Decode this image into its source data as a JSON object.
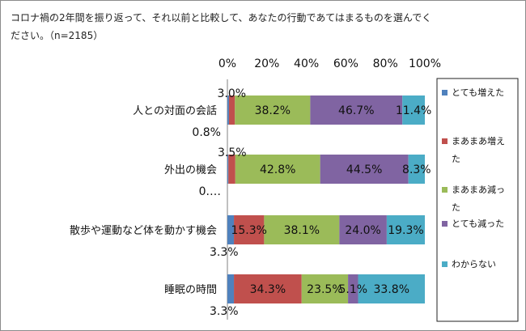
{
  "question": "コロナ禍の2年間を振り返って、それ以前と比較して、あなたの行動であてはまるものを選んでください。（n=2185）",
  "colors": {
    "series": [
      "#4f81bd",
      "#c0504d",
      "#9bbb59",
      "#8064a2",
      "#4bacc6"
    ]
  },
  "chart_data": {
    "type": "bar",
    "orientation": "horizontal",
    "stacked": true,
    "percent": true,
    "xlim": [
      0,
      100
    ],
    "ticks": [
      "0%",
      "20%",
      "40%",
      "60%",
      "80%",
      "100%"
    ],
    "categories": [
      "人との対面の会話",
      "外出の機会",
      "散歩や運動など体を動かす機会",
      "睡眠の時間"
    ],
    "series": [
      {
        "name": "とても増えた",
        "values": [
          0.8,
          0.5,
          3.3,
          3.3
        ],
        "labels": [
          "0.8%",
          "0.…",
          "3.3%",
          "3.3%"
        ]
      },
      {
        "name": "まあまあ増えた",
        "values": [
          3.0,
          3.5,
          15.3,
          34.3
        ],
        "labels": [
          "3.0%",
          "3.5%",
          "15.3%",
          "34.3%"
        ]
      },
      {
        "name": "まあまあ減った",
        "values": [
          38.2,
          42.8,
          38.1,
          23.5
        ],
        "labels": [
          "38.2%",
          "42.8%",
          "38.1%",
          "23.5%"
        ]
      },
      {
        "name": "とても減った",
        "values": [
          46.7,
          44.5,
          24.0,
          5.1
        ],
        "labels": [
          "46.7%",
          "44.5%",
          "24.0%",
          "5.1%"
        ]
      },
      {
        "name": "わからない",
        "values": [
          11.4,
          8.3,
          19.3,
          33.8
        ],
        "labels": [
          "11.4%",
          "8.3%",
          "19.3%",
          "33.8%"
        ]
      }
    ],
    "legend": "right",
    "grid": false
  }
}
